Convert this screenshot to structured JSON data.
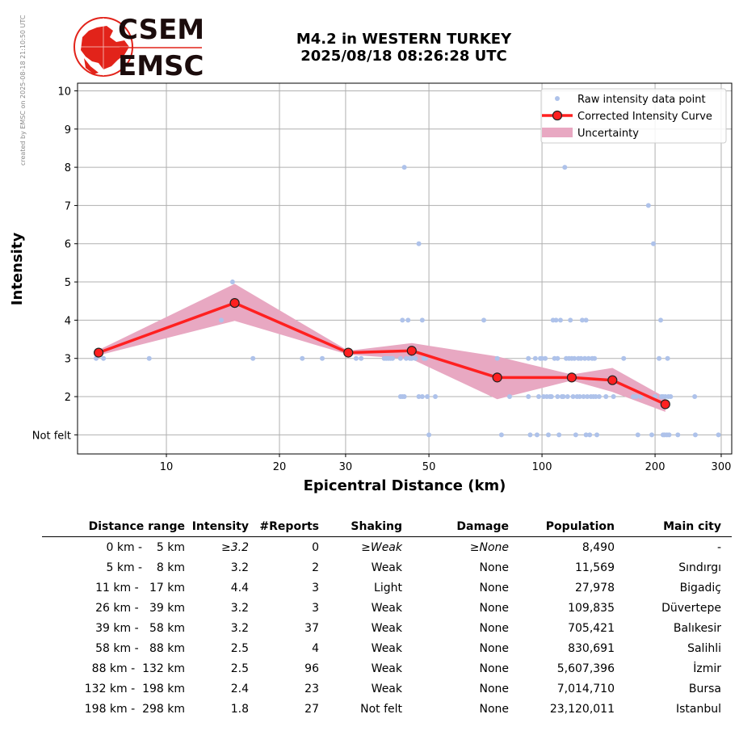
{
  "credit": "created by EMSC on 2025-08-18 21:10:50 UTC",
  "logo": {
    "line1": "CSEM",
    "line2": "EMSC",
    "color_red": "#e2231a",
    "color_dark": "#1b0c0c"
  },
  "title": {
    "line1": "M4.2 in WESTERN TURKEY",
    "line2": "2025/08/18 08:26:28 UTC"
  },
  "chart_data": {
    "type": "scatter",
    "xlabel": "Epicentral Distance (km)",
    "ylabel": "Intensity",
    "x_scale": "log",
    "xlim": [
      5.8,
      320
    ],
    "ylim": [
      0.5,
      10.2
    ],
    "grid": true,
    "legend_position": "top-right",
    "x_ticks": [
      {
        "value": 10,
        "label": "10"
      },
      {
        "value": 20,
        "label": "20"
      },
      {
        "value": 30,
        "label": "30"
      },
      {
        "value": 50,
        "label": "50"
      },
      {
        "value": 100,
        "label": "100"
      },
      {
        "value": 200,
        "label": "200"
      },
      {
        "value": 300,
        "label": "300"
      }
    ],
    "y_ticks": [
      {
        "value": 1,
        "label": "Not felt"
      },
      {
        "value": 2,
        "label": "2"
      },
      {
        "value": 3,
        "label": "3"
      },
      {
        "value": 4,
        "label": "4"
      },
      {
        "value": 5,
        "label": "5"
      },
      {
        "value": 6,
        "label": "6"
      },
      {
        "value": 7,
        "label": "7"
      },
      {
        "value": 8,
        "label": "8"
      },
      {
        "value": 9,
        "label": "9"
      },
      {
        "value": 10,
        "label": "10"
      }
    ],
    "colors": {
      "raw": "#aec2ea",
      "curve": "#ff2020",
      "marker_edge": "#222222",
      "uncertainty": "#e8a8c2",
      "grid": "#b0b0b0"
    },
    "series": [
      {
        "name": "Raw intensity data point",
        "points": [
          [
            6.5,
            3
          ],
          [
            6.8,
            3
          ],
          [
            9,
            3
          ],
          [
            14,
            4
          ],
          [
            15,
            5
          ],
          [
            17,
            3
          ],
          [
            23,
            3
          ],
          [
            26,
            3
          ],
          [
            32,
            3
          ],
          [
            33,
            3
          ],
          [
            38,
            3
          ],
          [
            38.5,
            3
          ],
          [
            39,
            3
          ],
          [
            39.5,
            3
          ],
          [
            40,
            3
          ],
          [
            42,
            3
          ],
          [
            42.5,
            4
          ],
          [
            43,
            8
          ],
          [
            43.5,
            3
          ],
          [
            44,
            4
          ],
          [
            44.5,
            3
          ],
          [
            45,
            3
          ],
          [
            46,
            3
          ],
          [
            47,
            6
          ],
          [
            48,
            4
          ],
          [
            48.5,
            3
          ],
          [
            49,
            3
          ],
          [
            49.5,
            2
          ],
          [
            50,
            1
          ],
          [
            52,
            2
          ],
          [
            42,
            2
          ],
          [
            42.5,
            2
          ],
          [
            43,
            2
          ],
          [
            47,
            2
          ],
          [
            48,
            2
          ],
          [
            70,
            4
          ],
          [
            76,
            3
          ],
          [
            78,
            1
          ],
          [
            82,
            2
          ],
          [
            92,
            3
          ],
          [
            92,
            2
          ],
          [
            93,
            1
          ],
          [
            96,
            3
          ],
          [
            97,
            1
          ],
          [
            98,
            2
          ],
          [
            99,
            3
          ],
          [
            100,
            3
          ],
          [
            101,
            2
          ],
          [
            102,
            3
          ],
          [
            103,
            2
          ],
          [
            104,
            1
          ],
          [
            105,
            2
          ],
          [
            106,
            2
          ],
          [
            107,
            4
          ],
          [
            108,
            3
          ],
          [
            109,
            4
          ],
          [
            110,
            3
          ],
          [
            110,
            2
          ],
          [
            111,
            1
          ],
          [
            112,
            4
          ],
          [
            113,
            2
          ],
          [
            114,
            2
          ],
          [
            115,
            8
          ],
          [
            116,
            3
          ],
          [
            117,
            2
          ],
          [
            118,
            3
          ],
          [
            119,
            4
          ],
          [
            120,
            3
          ],
          [
            121,
            2
          ],
          [
            122,
            3
          ],
          [
            123,
            1
          ],
          [
            124,
            2
          ],
          [
            125,
            3
          ],
          [
            126,
            2
          ],
          [
            127,
            3
          ],
          [
            128,
            4
          ],
          [
            129,
            2
          ],
          [
            130,
            3
          ],
          [
            131,
            4
          ],
          [
            131,
            1
          ],
          [
            132,
            2
          ],
          [
            133,
            3
          ],
          [
            134,
            1
          ],
          [
            135,
            2
          ],
          [
            136,
            3
          ],
          [
            137,
            2
          ],
          [
            138,
            3
          ],
          [
            139,
            2
          ],
          [
            140,
            1
          ],
          [
            142,
            2
          ],
          [
            148,
            2
          ],
          [
            155,
            2
          ],
          [
            165,
            3
          ],
          [
            175,
            2
          ],
          [
            178,
            2
          ],
          [
            180,
            1
          ],
          [
            183,
            2
          ],
          [
            192,
            7
          ],
          [
            196,
            1
          ],
          [
            198,
            6
          ],
          [
            200,
            2
          ],
          [
            205,
            3
          ],
          [
            207,
            4
          ],
          [
            208,
            2
          ],
          [
            210,
            2
          ],
          [
            210,
            1
          ],
          [
            212,
            1
          ],
          [
            213,
            2
          ],
          [
            215,
            1
          ],
          [
            216,
            3
          ],
          [
            217,
            2
          ],
          [
            218,
            1
          ],
          [
            220,
            2
          ],
          [
            230,
            1
          ],
          [
            255,
            2
          ],
          [
            256,
            1
          ],
          [
            295,
            1
          ]
        ]
      },
      {
        "name": "Corrected Intensity Curve",
        "points": [
          [
            6.6,
            3.15
          ],
          [
            15.2,
            4.45
          ],
          [
            30.5,
            3.15
          ],
          [
            45,
            3.2
          ],
          [
            76,
            2.5
          ],
          [
            120,
            2.5
          ],
          [
            154,
            2.43
          ],
          [
            213,
            1.8
          ]
        ]
      },
      {
        "name": "Uncertainty",
        "upper": [
          [
            6.6,
            3.22
          ],
          [
            15.2,
            4.95
          ],
          [
            30.5,
            3.2
          ],
          [
            45,
            3.4
          ],
          [
            76,
            3.05
          ],
          [
            120,
            2.58
          ],
          [
            154,
            2.75
          ],
          [
            213,
            1.98
          ]
        ],
        "lower": [
          [
            6.6,
            3.08
          ],
          [
            15.2,
            3.98
          ],
          [
            30.5,
            3.1
          ],
          [
            45,
            2.98
          ],
          [
            76,
            1.93
          ],
          [
            120,
            2.42
          ],
          [
            154,
            2.12
          ],
          [
            213,
            1.6
          ]
        ]
      }
    ]
  },
  "table": {
    "headers": [
      "Distance range",
      "Intensity",
      "#Reports",
      "Shaking",
      "Damage",
      "Population",
      "Main city"
    ],
    "rows": [
      {
        "range": "0 km -    5 km",
        "intensity": "≥3.2",
        "reports": "0",
        "shaking": "≥Weak",
        "damage": "≥None",
        "population": "8,490",
        "city": "-",
        "italic": true
      },
      {
        "range": "5 km -    8 km",
        "intensity": "3.2",
        "reports": "2",
        "shaking": "Weak",
        "damage": "None",
        "population": "11,569",
        "city": "Sındırgı"
      },
      {
        "range": "11 km -   17 km",
        "intensity": "4.4",
        "reports": "3",
        "shaking": "Light",
        "damage": "None",
        "population": "27,978",
        "city": "Bigadiç"
      },
      {
        "range": "26 km -   39 km",
        "intensity": "3.2",
        "reports": "3",
        "shaking": "Weak",
        "damage": "None",
        "population": "109,835",
        "city": "Düvertepe"
      },
      {
        "range": "39 km -   58 km",
        "intensity": "3.2",
        "reports": "37",
        "shaking": "Weak",
        "damage": "None",
        "population": "705,421",
        "city": "Balıkesir"
      },
      {
        "range": "58 km -   88 km",
        "intensity": "2.5",
        "reports": "4",
        "shaking": "Weak",
        "damage": "None",
        "population": "830,691",
        "city": "Salihli"
      },
      {
        "range": "88 km -  132 km",
        "intensity": "2.5",
        "reports": "96",
        "shaking": "Weak",
        "damage": "None",
        "population": "5,607,396",
        "city": "İzmir"
      },
      {
        "range": "132 km -  198 km",
        "intensity": "2.4",
        "reports": "23",
        "shaking": "Weak",
        "damage": "None",
        "population": "7,014,710",
        "city": "Bursa"
      },
      {
        "range": "198 km -  298 km",
        "intensity": "1.8",
        "reports": "27",
        "shaking": "Not felt",
        "damage": "None",
        "population": "23,120,011",
        "city": "Istanbul"
      }
    ]
  }
}
